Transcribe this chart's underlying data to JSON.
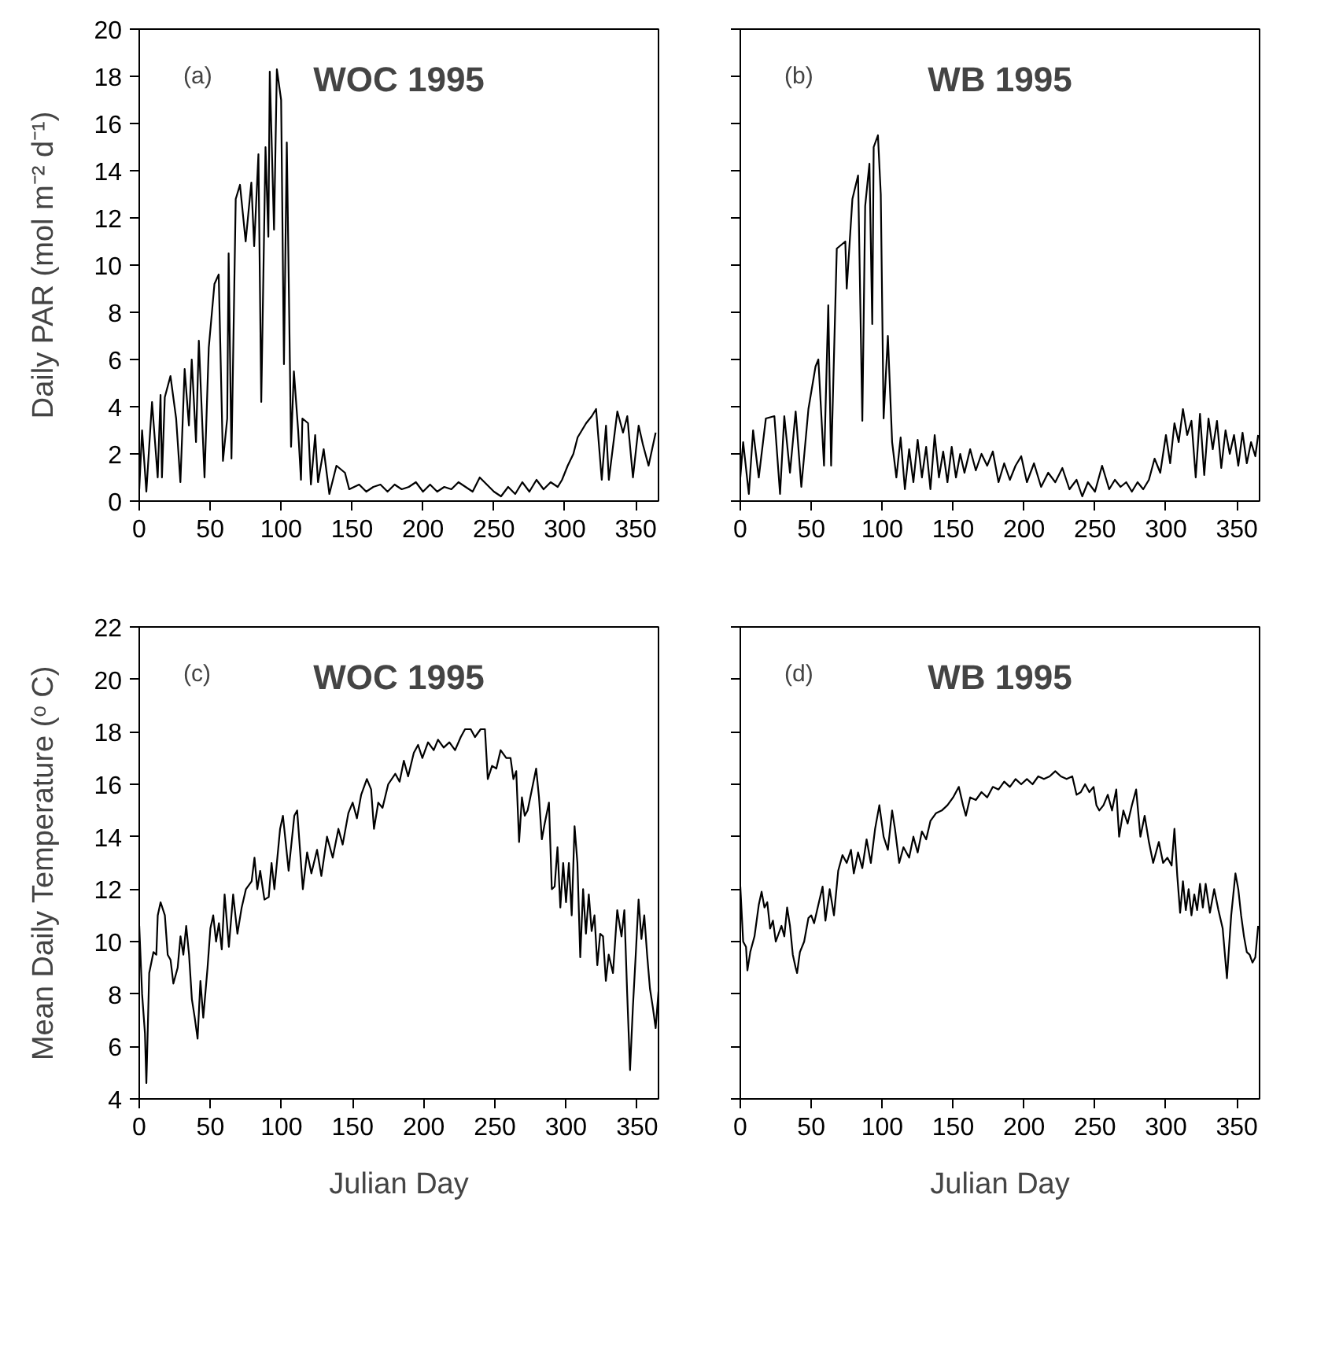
{
  "chart_data": [
    {
      "type": "line",
      "title": "WOC 1995",
      "annotations": [
        "(a)"
      ],
      "ylabel": "Daily PAR (mol m⁻² d⁻¹)",
      "color": "#000000",
      "xlim": [
        0,
        366
      ],
      "xticks": [
        0,
        50,
        100,
        150,
        200,
        250,
        300,
        350
      ],
      "ylim": [
        0,
        20
      ],
      "yticks": [
        0,
        2,
        4,
        6,
        8,
        10,
        12,
        14,
        16,
        18,
        20
      ],
      "x": [
        0,
        2,
        5,
        9,
        13,
        15,
        16,
        18,
        22,
        26,
        29,
        32,
        35,
        37,
        40,
        42,
        46,
        49,
        53,
        56,
        59,
        62,
        63,
        65,
        68,
        71,
        75,
        79,
        81,
        84,
        86,
        89,
        91,
        92,
        95,
        97,
        100,
        102,
        104,
        107,
        109,
        112,
        114,
        115,
        119,
        121,
        124,
        126,
        130,
        134,
        139,
        145,
        148,
        155,
        160,
        165,
        170,
        175,
        180,
        185,
        190,
        195,
        200,
        205,
        210,
        215,
        220,
        225,
        230,
        235,
        240,
        245,
        250,
        255,
        260,
        265,
        270,
        275,
        280,
        285,
        290,
        295,
        298,
        302,
        306,
        309,
        315,
        319,
        322,
        326,
        329,
        331,
        337,
        341,
        344,
        348,
        352,
        355,
        359,
        364
      ],
      "values": [
        0.5,
        3.0,
        0.4,
        4.2,
        1.0,
        4.5,
        1.0,
        4.4,
        5.3,
        3.5,
        0.8,
        5.6,
        3.2,
        6.0,
        2.5,
        6.8,
        1.0,
        6.5,
        9.2,
        9.6,
        1.7,
        3.5,
        10.5,
        1.8,
        12.8,
        13.4,
        11.0,
        13.5,
        10.8,
        14.7,
        4.2,
        15.0,
        11.2,
        18.2,
        11.5,
        18.3,
        17.0,
        5.8,
        15.2,
        2.3,
        5.5,
        3.0,
        0.9,
        3.5,
        3.3,
        0.7,
        2.8,
        0.8,
        2.2,
        0.3,
        1.5,
        1.2,
        0.5,
        0.7,
        0.4,
        0.6,
        0.7,
        0.4,
        0.7,
        0.5,
        0.6,
        0.8,
        0.4,
        0.7,
        0.4,
        0.6,
        0.5,
        0.8,
        0.6,
        0.4,
        1.0,
        0.7,
        0.4,
        0.2,
        0.6,
        0.3,
        0.8,
        0.4,
        0.9,
        0.5,
        0.8,
        0.6,
        0.9,
        1.5,
        2.0,
        2.7,
        3.3,
        3.6,
        3.9,
        0.9,
        3.2,
        0.9,
        3.8,
        2.9,
        3.6,
        1.0,
        3.2,
        2.4,
        1.5,
        2.9
      ]
    },
    {
      "type": "line",
      "title": "WB 1995",
      "annotations": [
        "(b)"
      ],
      "color": "#000000",
      "tick_labels": "x",
      "xlim": [
        0,
        366
      ],
      "xticks": [
        0,
        50,
        100,
        150,
        200,
        250,
        300,
        350
      ],
      "ylim": [
        0,
        20
      ],
      "yticks": [
        0,
        2,
        4,
        6,
        8,
        10,
        12,
        14,
        16,
        18,
        20
      ],
      "x": [
        0,
        2,
        6,
        9,
        13,
        18,
        24,
        28,
        31,
        35,
        39,
        43,
        48,
        53,
        55,
        59,
        62,
        64,
        68,
        74,
        75,
        79,
        83,
        86,
        88,
        91,
        93,
        94,
        97,
        99,
        101,
        104,
        107,
        110,
        113,
        116,
        119,
        122,
        125,
        128,
        131,
        134,
        137,
        140,
        143,
        146,
        149,
        152,
        155,
        158,
        162,
        166,
        170,
        174,
        178,
        182,
        186,
        190,
        194,
        198,
        202,
        207,
        212,
        217,
        222,
        227,
        232,
        237,
        241,
        245,
        250,
        255,
        260,
        264,
        268,
        272,
        276,
        280,
        284,
        288,
        292,
        296,
        300,
        303,
        306,
        309,
        312,
        315,
        318,
        321,
        324,
        327,
        330,
        333,
        336,
        339,
        342,
        345,
        348,
        351,
        354,
        357,
        360,
        363,
        365
      ],
      "values": [
        1.0,
        2.5,
        0.3,
        3.0,
        1.0,
        3.5,
        3.6,
        0.3,
        3.6,
        1.2,
        3.8,
        0.6,
        3.9,
        5.7,
        6.0,
        1.5,
        8.3,
        1.5,
        10.7,
        11.0,
        9.0,
        12.8,
        13.8,
        3.4,
        12.5,
        14.3,
        7.5,
        15.0,
        15.5,
        13.0,
        3.5,
        7.0,
        2.5,
        1.0,
        2.7,
        0.5,
        2.2,
        0.8,
        2.6,
        1.0,
        2.3,
        0.5,
        2.8,
        1.0,
        2.1,
        0.8,
        2.3,
        1.0,
        2.0,
        1.2,
        2.2,
        1.3,
        2.0,
        1.5,
        2.1,
        0.8,
        1.6,
        0.9,
        1.5,
        1.9,
        0.8,
        1.6,
        0.6,
        1.2,
        0.8,
        1.4,
        0.5,
        0.9,
        0.2,
        0.8,
        0.4,
        1.5,
        0.5,
        0.9,
        0.6,
        0.8,
        0.4,
        0.8,
        0.5,
        0.9,
        1.8,
        1.2,
        2.8,
        1.6,
        3.3,
        2.5,
        3.9,
        2.8,
        3.4,
        1.0,
        3.7,
        1.1,
        3.5,
        2.2,
        3.4,
        1.4,
        3.0,
        2.0,
        2.8,
        1.5,
        2.9,
        1.6,
        2.5,
        1.9,
        2.8
      ]
    },
    {
      "type": "line",
      "title": "WOC 1995",
      "annotations": [
        "(c)"
      ],
      "xlabel": "Julian Day",
      "ylabel": "Mean Daily Temperature (ᵒ C)",
      "color": "#000000",
      "xlim": [
        0,
        365
      ],
      "xticks": [
        0,
        50,
        100,
        150,
        200,
        250,
        300,
        350
      ],
      "ylim": [
        4,
        22
      ],
      "yticks": [
        4,
        6,
        8,
        10,
        12,
        14,
        16,
        18,
        20,
        22
      ],
      "x": [
        0,
        2,
        4,
        5,
        7,
        10,
        12,
        13,
        15,
        18,
        20,
        22,
        24,
        27,
        29,
        31,
        33,
        35,
        37,
        39,
        41,
        43,
        45,
        48,
        50,
        52,
        54,
        56,
        58,
        60,
        63,
        66,
        69,
        72,
        75,
        79,
        81,
        83,
        85,
        88,
        91,
        93,
        95,
        99,
        101,
        105,
        109,
        111,
        115,
        118,
        121,
        125,
        128,
        132,
        136,
        140,
        143,
        147,
        150,
        153,
        156,
        160,
        163,
        165,
        168,
        171,
        175,
        180,
        183,
        186,
        189,
        193,
        196,
        199,
        203,
        207,
        210,
        214,
        218,
        222,
        226,
        229,
        233,
        236,
        240,
        243,
        245,
        248,
        251,
        254,
        258,
        261,
        263,
        265,
        267,
        269,
        271,
        273,
        276,
        279,
        281,
        283,
        285,
        288,
        290,
        292,
        294,
        296,
        298,
        300,
        302,
        304,
        306,
        308,
        310,
        312,
        314,
        316,
        318,
        320,
        322,
        324,
        326,
        328,
        330,
        333,
        336,
        339,
        341,
        343,
        345,
        347,
        349,
        351,
        353,
        355,
        357,
        359,
        361,
        363,
        365
      ],
      "values": [
        10.6,
        8.0,
        6.5,
        4.6,
        8.8,
        9.6,
        9.5,
        11.0,
        11.5,
        11.0,
        9.5,
        9.3,
        8.4,
        9.0,
        10.2,
        9.5,
        10.6,
        9.5,
        7.8,
        7.1,
        6.3,
        8.5,
        7.1,
        9.0,
        10.5,
        11.0,
        10.0,
        10.7,
        9.7,
        11.8,
        9.8,
        11.8,
        10.3,
        11.3,
        12.0,
        12.3,
        13.2,
        12.0,
        12.7,
        11.6,
        11.7,
        13.0,
        12.0,
        14.3,
        14.8,
        12.7,
        14.8,
        15.0,
        12.0,
        13.4,
        12.6,
        13.5,
        12.5,
        14.0,
        13.2,
        14.3,
        13.7,
        14.9,
        15.3,
        14.7,
        15.6,
        16.2,
        15.8,
        14.3,
        15.3,
        15.1,
        16.0,
        16.4,
        16.1,
        16.9,
        16.3,
        17.2,
        17.5,
        17.0,
        17.6,
        17.3,
        17.7,
        17.4,
        17.6,
        17.3,
        17.8,
        18.1,
        18.1,
        17.8,
        18.1,
        18.1,
        16.2,
        16.7,
        16.6,
        17.3,
        17.0,
        17.0,
        16.2,
        16.5,
        13.8,
        15.5,
        14.8,
        15.0,
        15.8,
        16.6,
        15.5,
        13.9,
        14.5,
        15.3,
        12.0,
        12.1,
        13.6,
        11.3,
        13.0,
        11.5,
        13.0,
        11.0,
        14.4,
        13.0,
        9.4,
        12.0,
        10.3,
        11.8,
        10.4,
        11.0,
        9.1,
        10.3,
        10.2,
        8.5,
        9.5,
        8.8,
        11.2,
        10.2,
        11.2,
        8.0,
        5.1,
        7.5,
        9.5,
        11.6,
        10.1,
        11.0,
        9.5,
        8.2,
        7.5,
        6.7,
        8.1
      ]
    },
    {
      "type": "line",
      "title": "WB 1995",
      "annotations": [
        "(d)"
      ],
      "xlabel": "Julian Day",
      "color": "#000000",
      "tick_labels": "x",
      "xlim": [
        0,
        366
      ],
      "xticks": [
        0,
        50,
        100,
        150,
        200,
        250,
        300,
        350
      ],
      "ylim": [
        4,
        22
      ],
      "yticks": [
        4,
        6,
        8,
        10,
        12,
        14,
        16,
        18,
        20,
        22
      ],
      "x": [
        0,
        2,
        4,
        5,
        7,
        10,
        13,
        15,
        17,
        19,
        21,
        23,
        25,
        27,
        29,
        31,
        33,
        35,
        37,
        39,
        40,
        42,
        45,
        48,
        50,
        52,
        55,
        58,
        60,
        63,
        66,
        69,
        72,
        75,
        78,
        80,
        83,
        86,
        89,
        92,
        95,
        98,
        101,
        104,
        107,
        109,
        112,
        115,
        119,
        122,
        125,
        128,
        131,
        134,
        138,
        142,
        146,
        150,
        154,
        157,
        159,
        162,
        166,
        170,
        174,
        178,
        182,
        186,
        190,
        194,
        198,
        202,
        206,
        210,
        214,
        218,
        222,
        226,
        230,
        234,
        237,
        240,
        243,
        246,
        249,
        251,
        253,
        256,
        259,
        262,
        265,
        267,
        270,
        273,
        276,
        279,
        282,
        285,
        288,
        291,
        295,
        298,
        301,
        304,
        306,
        308,
        310,
        312,
        314,
        316,
        318,
        320,
        322,
        324,
        326,
        328,
        331,
        334,
        337,
        340,
        343,
        346,
        349,
        351,
        353,
        355,
        357,
        359,
        361,
        363,
        365
      ],
      "values": [
        12.1,
        10.0,
        9.8,
        8.9,
        9.6,
        10.2,
        11.4,
        11.9,
        11.3,
        11.5,
        10.5,
        10.8,
        10.0,
        10.3,
        10.6,
        10.2,
        11.3,
        10.6,
        9.5,
        9.0,
        8.8,
        9.6,
        10.0,
        10.9,
        11.0,
        10.7,
        11.4,
        12.1,
        10.8,
        12.0,
        11.0,
        12.7,
        13.3,
        13.0,
        13.5,
        12.6,
        13.4,
        12.8,
        13.9,
        13.0,
        14.3,
        15.2,
        14.0,
        13.5,
        15.0,
        14.3,
        13.0,
        13.6,
        13.2,
        14.0,
        13.4,
        14.2,
        13.9,
        14.6,
        14.9,
        15.0,
        15.2,
        15.5,
        15.9,
        15.2,
        14.8,
        15.5,
        15.4,
        15.7,
        15.5,
        15.9,
        15.8,
        16.1,
        15.9,
        16.2,
        16.0,
        16.2,
        16.0,
        16.3,
        16.2,
        16.3,
        16.5,
        16.3,
        16.2,
        16.3,
        15.6,
        15.7,
        16.0,
        15.7,
        15.9,
        15.2,
        15.0,
        15.2,
        15.6,
        15.0,
        15.8,
        14.0,
        15.0,
        14.5,
        15.2,
        15.8,
        14.0,
        14.8,
        13.8,
        13.0,
        13.8,
        13.0,
        13.2,
        12.9,
        14.3,
        12.5,
        11.1,
        12.3,
        11.2,
        12.0,
        11.0,
        11.8,
        11.2,
        12.2,
        11.3,
        12.2,
        11.1,
        12.0,
        11.2,
        10.5,
        8.6,
        11.0,
        12.6,
        12.0,
        11.0,
        10.2,
        9.6,
        9.5,
        9.2,
        9.4,
        10.6
      ]
    }
  ]
}
